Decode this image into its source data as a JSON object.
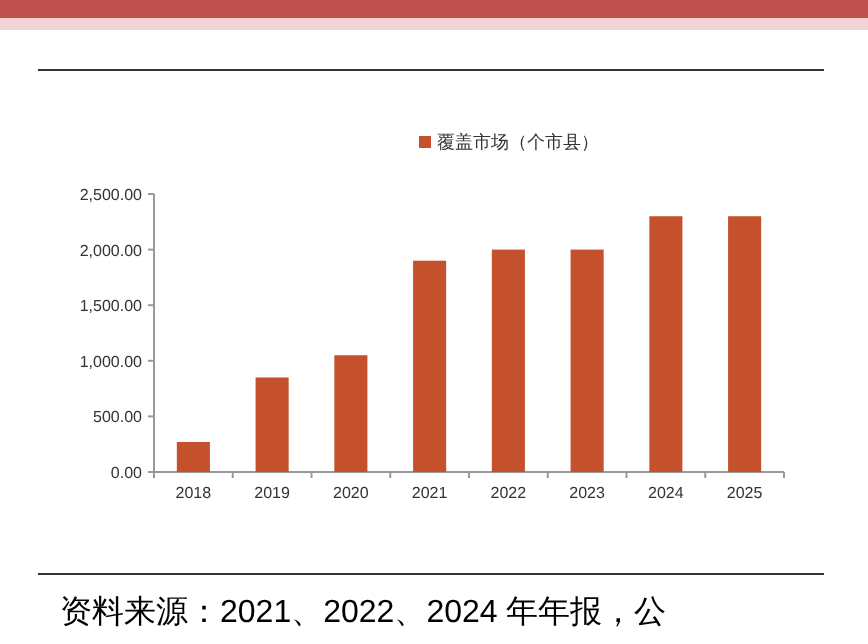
{
  "chart_data": {
    "type": "bar",
    "categories": [
      "2018",
      "2019",
      "2020",
      "2021",
      "2022",
      "2023",
      "2024",
      "2025"
    ],
    "series": [
      {
        "name": "覆盖市场（个市县）",
        "color": "#c4512b",
        "values": [
          270,
          850,
          1050,
          1900,
          2000,
          2000,
          2300,
          2300
        ]
      }
    ],
    "ylim": [
      0,
      2500
    ],
    "yticks": [
      {
        "value": 0,
        "label": "0.00"
      },
      {
        "value": 500,
        "label": "500.00"
      },
      {
        "value": 1000,
        "label": "1,000.00"
      },
      {
        "value": 1500,
        "label": "1,500.00"
      },
      {
        "value": 2000,
        "label": "2,000.00"
      },
      {
        "value": 2500,
        "label": "2,500.00"
      }
    ],
    "legend": "top",
    "annotations": [
      "资料来源：2021、2022、2024 年年报，公"
    ]
  }
}
